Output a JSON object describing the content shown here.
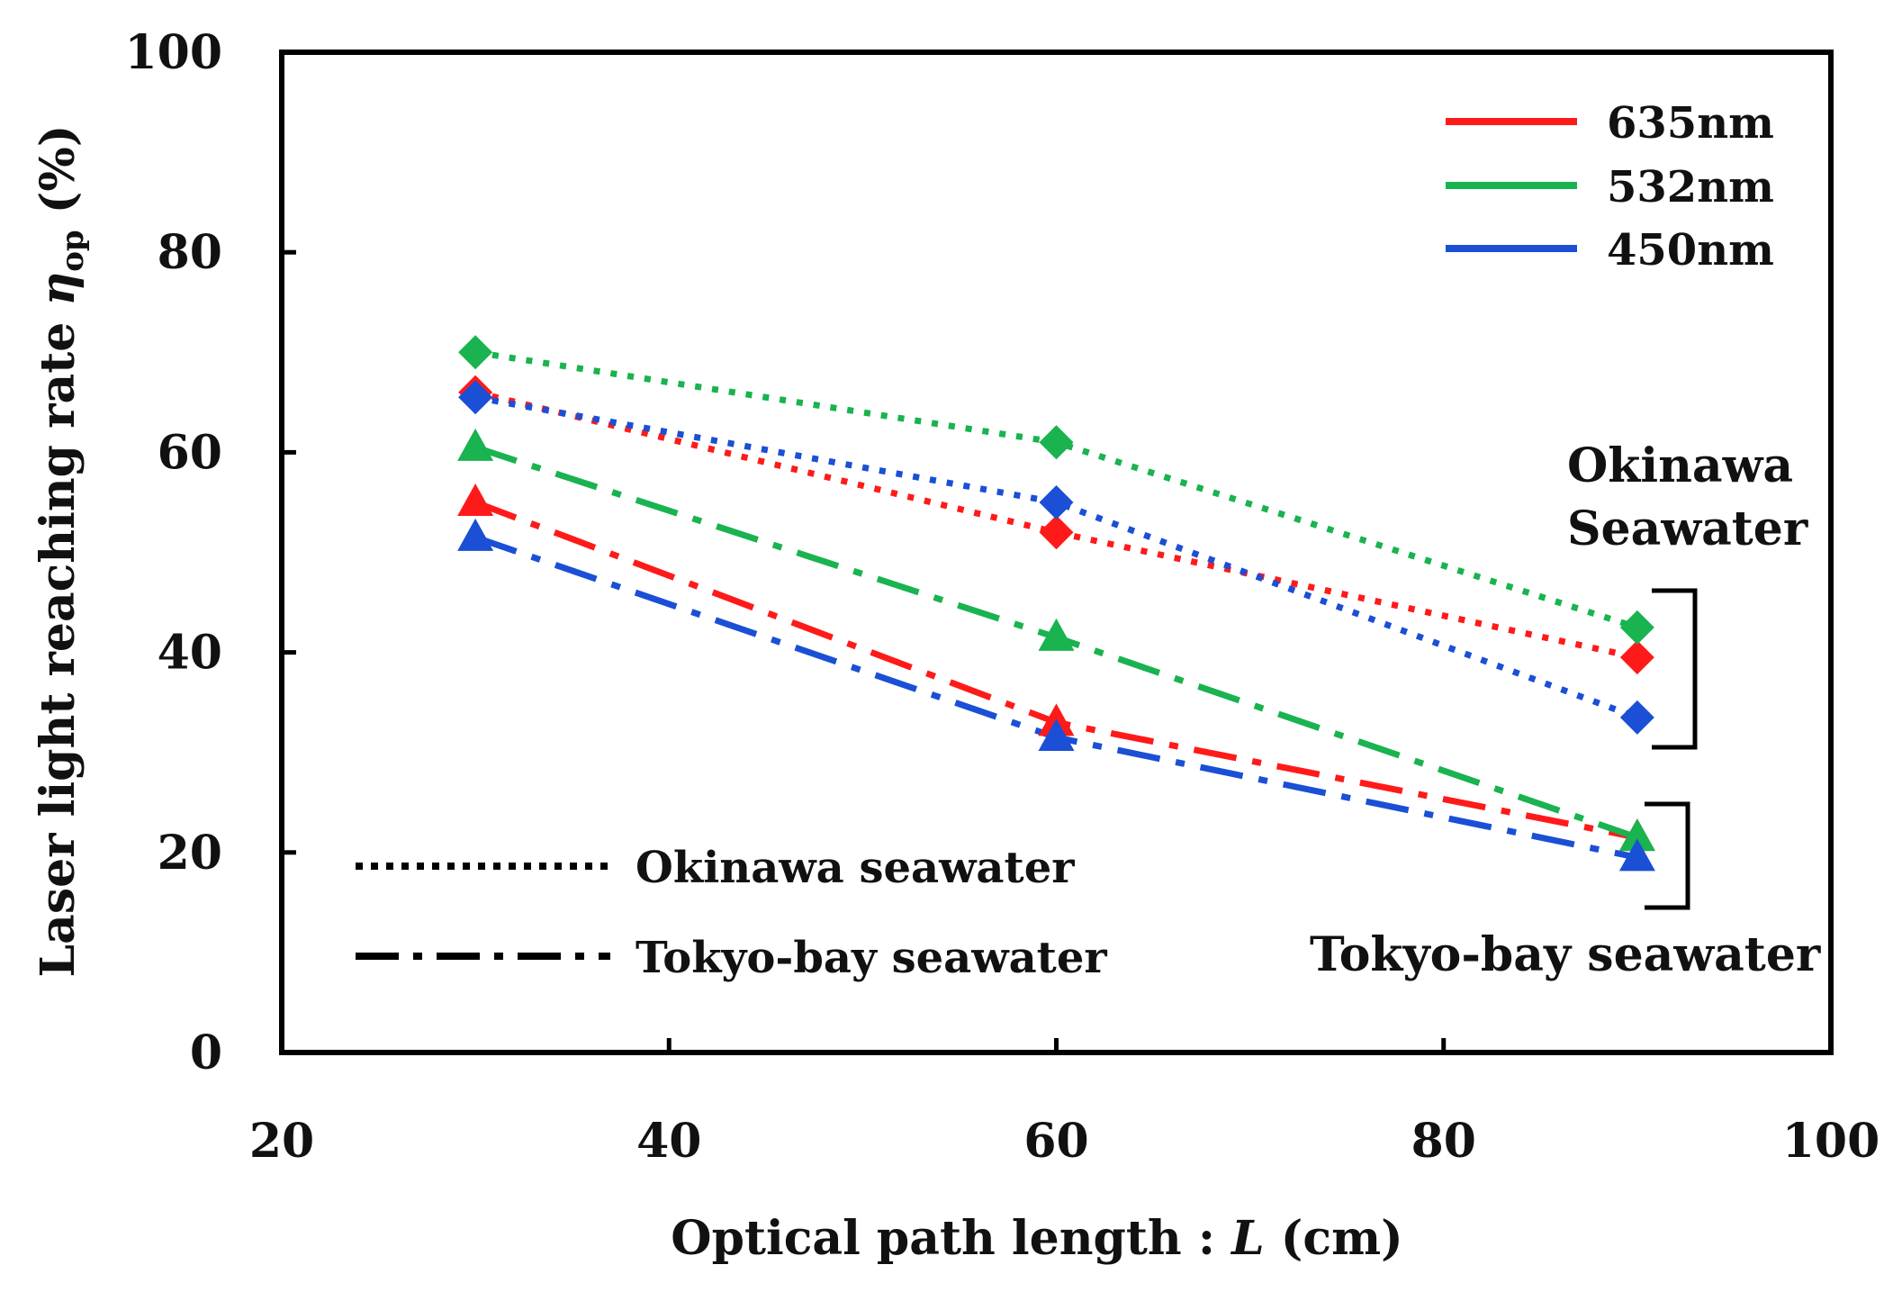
{
  "chart_data": {
    "type": "line",
    "title": "",
    "xlabel_prefix": "Optical path length : ",
    "xlabel_var": "L",
    "xlabel_suffix": " (cm)",
    "ylabel_prefix": "Laser light reaching rate ",
    "ylabel_var": "η",
    "ylabel_sub": "op",
    "ylabel_suffix": " (%)",
    "xlim": [
      20,
      100
    ],
    "ylim": [
      0,
      100
    ],
    "xticks": [
      "20",
      "40",
      "60",
      "80",
      "100"
    ],
    "yticks": [
      "0",
      "20",
      "40",
      "60",
      "80",
      "100"
    ],
    "grid": false,
    "x": [
      30,
      60,
      90
    ],
    "series": [
      {
        "name": "635nm Okinawa seawater",
        "wavelength": "635nm",
        "water": "Okinawa seawater",
        "color": "#ff1a1a",
        "style": "dotted",
        "marker": "diamond",
        "values": [
          66,
          52,
          39.5
        ]
      },
      {
        "name": "532nm Okinawa seawater",
        "wavelength": "532nm",
        "water": "Okinawa seawater",
        "color": "#19b34f",
        "style": "dotted",
        "marker": "diamond",
        "values": [
          70,
          61,
          42.5
        ]
      },
      {
        "name": "450nm Okinawa seawater",
        "wavelength": "450nm",
        "water": "Okinawa seawater",
        "color": "#1a4fd6",
        "style": "dotted",
        "marker": "diamond",
        "values": [
          65.5,
          55,
          33.5
        ]
      },
      {
        "name": "635nm Tokyo-bay seawater",
        "wavelength": "635nm",
        "water": "Tokyo-bay seawater",
        "color": "#ff1a1a",
        "style": "dashdot",
        "marker": "triangle",
        "values": [
          55,
          33,
          21.5
        ]
      },
      {
        "name": "532nm Tokyo-bay seawater",
        "wavelength": "532nm",
        "water": "Tokyo-bay seawater",
        "color": "#19b34f",
        "style": "dashdot",
        "marker": "triangle",
        "values": [
          60.5,
          41.5,
          21.5
        ]
      },
      {
        "name": "450nm Tokyo-bay seawater",
        "wavelength": "450nm",
        "water": "Tokyo-bay seawater",
        "color": "#1a4fd6",
        "style": "dashdot",
        "marker": "triangle",
        "values": [
          51.5,
          31.5,
          19.5
        ]
      }
    ],
    "legend_colors": [
      {
        "label": "635nm",
        "color": "#ff1a1a"
      },
      {
        "label": "532nm",
        "color": "#19b34f"
      },
      {
        "label": "450nm",
        "color": "#1a4fd6"
      }
    ],
    "legend_colors_placement": "top-right",
    "legend_styles": [
      {
        "label": "Okinawa seawater",
        "style": "dotted"
      },
      {
        "label": "Tokyo-bay seawater",
        "style": "dashdot"
      }
    ],
    "legend_styles_placement": "bottom-left",
    "annotations": {
      "okinawa_line1": "Okinawa",
      "okinawa_line2": "Seawater",
      "tokyo": "Tokyo-bay seawater"
    }
  }
}
